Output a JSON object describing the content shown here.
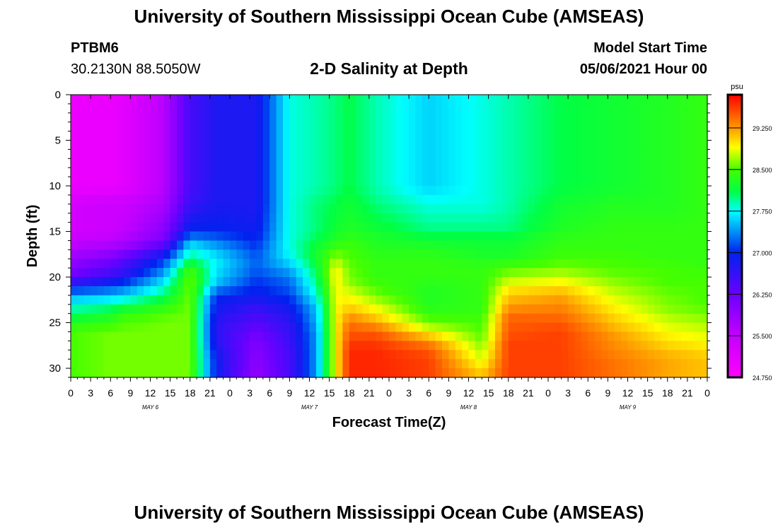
{
  "header": {
    "title": "University of Southern Mississippi Ocean Cube (AMSEAS)",
    "station": "PTBM6",
    "coords": "30.2130N  88.5050W",
    "plot_title": "2-D Salinity at Depth",
    "start_label": "Model Start Time",
    "start_value": "05/06/2021 Hour 00"
  },
  "footer": {
    "title": "University of Southern Mississippi Ocean Cube (AMSEAS)"
  },
  "colorbar": {
    "unit": "psu",
    "labels": [
      "29.250",
      "28.500",
      "27.750",
      "27.000",
      "26.250",
      "25.500",
      "24.750"
    ],
    "min": 24.75,
    "max": 29.85,
    "stops": [
      {
        "v": 24.75,
        "c": "#ff00ff"
      },
      {
        "v": 25.5,
        "c": "#c400ff"
      },
      {
        "v": 26.25,
        "c": "#6a00ff"
      },
      {
        "v": 27.0,
        "c": "#0022ee"
      },
      {
        "v": 27.75,
        "c": "#00ffff"
      },
      {
        "v": 28.1,
        "c": "#00ff44"
      },
      {
        "v": 28.5,
        "c": "#44ff00"
      },
      {
        "v": 28.9,
        "c": "#ffff00"
      },
      {
        "v": 29.25,
        "c": "#ff9900"
      },
      {
        "v": 29.85,
        "c": "#ff0000"
      }
    ]
  },
  "chart_data": {
    "type": "heatmap",
    "title": "2-D Salinity at Depth",
    "xlabel": "Forecast Time(Z)",
    "ylabel": "Depth (ft)",
    "units": "psu",
    "x_hours": [
      0,
      3,
      6,
      9,
      12,
      15,
      18,
      21,
      24,
      27,
      30,
      33,
      36,
      39,
      42,
      45,
      48,
      51,
      54,
      57,
      60,
      63,
      66,
      69,
      72,
      75,
      78,
      81,
      84,
      87,
      90,
      93,
      96
    ],
    "x_tick_labels": [
      "0",
      "3",
      "6",
      "9",
      "12",
      "15",
      "18",
      "21",
      "0",
      "3",
      "6",
      "9",
      "12",
      "15",
      "18",
      "21",
      "0",
      "3",
      "6",
      "9",
      "12",
      "15",
      "18",
      "21",
      "0",
      "3",
      "6",
      "9",
      "12",
      "15",
      "18",
      "21",
      "0"
    ],
    "day_labels": [
      {
        "text": "MAY  6",
        "hour": 12
      },
      {
        "text": "MAY  7",
        "hour": 36
      },
      {
        "text": "MAY  8",
        "hour": 60
      },
      {
        "text": "MAY  9",
        "hour": 84
      }
    ],
    "y_ticks": [
      0,
      5,
      10,
      15,
      20,
      25,
      30
    ],
    "y_range": [
      0,
      31
    ],
    "x_range": [
      0,
      96
    ],
    "depths": [
      0,
      10,
      12,
      15,
      16,
      17,
      18,
      19,
      20,
      21,
      22,
      23,
      24,
      25,
      26,
      27,
      28,
      29,
      30,
      31
    ],
    "key_hours": [
      0,
      6,
      8,
      14,
      18,
      22,
      28,
      33,
      37,
      40,
      42,
      46,
      54,
      62,
      66,
      74,
      82,
      90,
      96
    ],
    "salinity": [
      [
        25.0,
        25.0,
        25.3,
        25.3,
        25.5,
        25.6,
        25.9,
        26.0,
        26.3,
        26.9,
        27.4,
        27.8,
        28.0,
        28.3,
        28.5,
        28.5,
        28.5,
        28.5,
        28.5,
        28.5
      ],
      [
        25.0,
        25.0,
        25.4,
        25.4,
        25.6,
        25.8,
        26.1,
        26.4,
        26.6,
        27.1,
        27.5,
        27.9,
        28.2,
        28.4,
        28.6,
        28.6,
        28.6,
        28.6,
        28.6,
        28.6
      ],
      [
        25.1,
        25.1,
        25.4,
        25.5,
        25.7,
        25.9,
        26.4,
        26.5,
        26.8,
        27.2,
        27.6,
        28.0,
        28.4,
        28.5,
        28.6,
        28.6,
        28.6,
        28.6,
        28.6,
        28.6
      ],
      [
        25.6,
        25.6,
        25.7,
        26.0,
        26.1,
        26.6,
        27.0,
        27.3,
        27.5,
        27.8,
        28.0,
        28.3,
        28.5,
        28.6,
        28.6,
        28.6,
        28.6,
        28.6,
        28.6,
        28.6
      ],
      [
        26.5,
        26.5,
        26.6,
        27.0,
        27.5,
        27.8,
        28.0,
        28.4,
        28.6,
        28.6,
        28.6,
        28.6,
        28.6,
        28.6,
        28.6,
        28.6,
        28.6,
        28.6,
        28.6,
        28.6
      ],
      [
        26.8,
        26.8,
        26.8,
        27.0,
        27.3,
        27.5,
        27.7,
        27.7,
        27.6,
        27.5,
        27.0,
        26.9,
        26.8,
        26.7,
        26.7,
        26.7,
        26.8,
        26.9,
        26.9,
        26.9
      ],
      [
        26.8,
        26.8,
        26.8,
        26.9,
        27.0,
        27.1,
        27.2,
        27.2,
        27.1,
        27.0,
        26.9,
        26.7,
        26.5,
        26.4,
        26.2,
        26.1,
        26.0,
        26.0,
        25.9,
        25.9
      ],
      [
        27.8,
        27.8,
        27.8,
        27.8,
        27.8,
        27.8,
        27.7,
        27.5,
        27.3,
        27.2,
        27.1,
        26.9,
        26.8,
        26.7,
        26.6,
        26.6,
        26.5,
        26.5,
        26.5,
        26.5
      ],
      [
        27.9,
        27.9,
        28.0,
        28.0,
        28.1,
        28.2,
        28.2,
        28.1,
        28.0,
        27.9,
        27.8,
        27.6,
        27.5,
        27.5,
        27.4,
        27.4,
        27.4,
        27.4,
        27.4,
        27.4
      ],
      [
        28.0,
        28.0,
        28.1,
        28.2,
        28.3,
        28.5,
        28.7,
        28.9,
        29.0,
        28.9,
        28.9,
        28.9,
        28.9,
        28.9,
        28.9,
        28.9,
        28.9,
        28.9,
        28.9,
        28.9
      ],
      [
        28.1,
        28.1,
        28.2,
        28.3,
        28.4,
        28.5,
        28.5,
        28.6,
        28.6,
        28.7,
        28.9,
        29.0,
        29.2,
        29.4,
        29.5,
        29.6,
        29.7,
        29.7,
        29.7,
        29.7
      ],
      [
        27.9,
        27.9,
        28.0,
        28.2,
        28.3,
        28.3,
        28.4,
        28.4,
        28.4,
        28.5,
        28.6,
        28.8,
        29.0,
        29.2,
        29.5,
        29.6,
        29.7,
        29.7,
        29.7,
        29.7
      ],
      [
        27.6,
        27.6,
        27.8,
        28.0,
        28.2,
        28.3,
        28.4,
        28.4,
        28.4,
        28.3,
        28.3,
        28.3,
        28.4,
        28.6,
        28.9,
        29.3,
        29.5,
        29.6,
        29.6,
        29.6
      ],
      [
        27.8,
        27.8,
        27.8,
        28.0,
        28.2,
        28.2,
        28.3,
        28.4,
        28.4,
        28.4,
        28.4,
        28.4,
        28.4,
        28.5,
        28.5,
        28.6,
        28.7,
        28.8,
        29.0,
        29.1
      ],
      [
        27.9,
        27.9,
        27.9,
        28.0,
        28.2,
        28.2,
        28.3,
        28.5,
        28.7,
        28.9,
        29.1,
        29.2,
        29.4,
        29.5,
        29.5,
        29.6,
        29.6,
        29.6,
        29.6,
        29.6
      ],
      [
        28.1,
        28.1,
        28.2,
        28.3,
        28.4,
        28.4,
        28.5,
        28.6,
        28.8,
        29.0,
        29.2,
        29.3,
        29.4,
        29.5,
        29.6,
        29.6,
        29.6,
        29.6,
        29.6,
        29.6
      ],
      [
        28.2,
        28.2,
        28.3,
        28.4,
        28.4,
        28.4,
        28.5,
        28.5,
        28.6,
        28.7,
        28.8,
        28.9,
        29.0,
        29.1,
        29.2,
        29.3,
        29.3,
        29.4,
        29.4,
        29.4
      ],
      [
        28.3,
        28.3,
        28.3,
        28.4,
        28.4,
        28.4,
        28.4,
        28.5,
        28.5,
        28.5,
        28.6,
        28.6,
        28.7,
        28.8,
        28.9,
        29.0,
        29.1,
        29.2,
        29.2,
        29.2
      ],
      [
        28.4,
        28.4,
        28.4,
        28.4,
        28.4,
        28.4,
        28.4,
        28.4,
        28.5,
        28.5,
        28.5,
        28.5,
        28.6,
        28.7,
        28.8,
        28.9,
        29.0,
        29.1,
        29.1,
        29.1
      ]
    ]
  }
}
